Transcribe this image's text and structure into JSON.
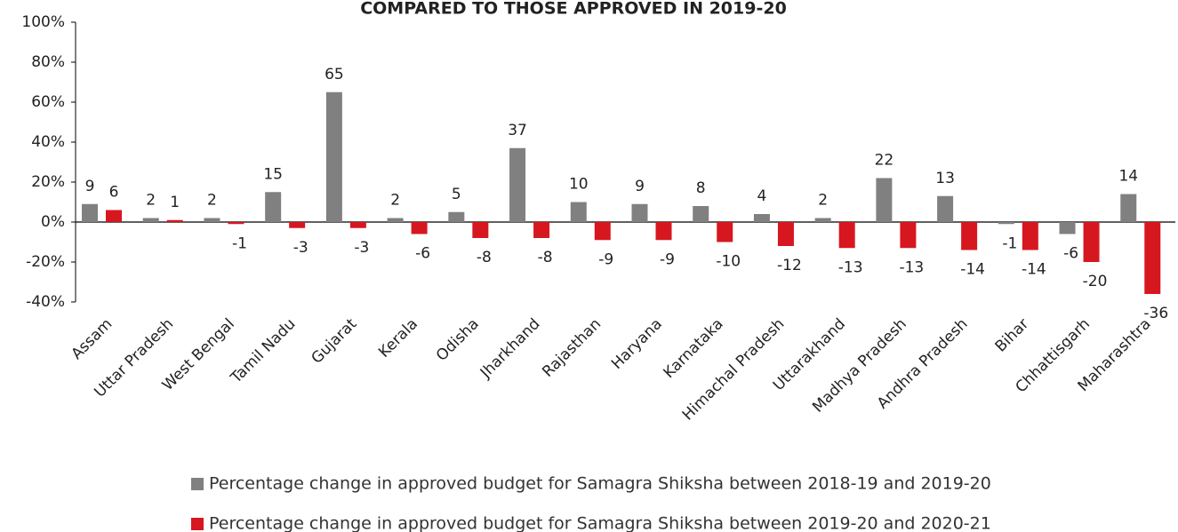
{
  "chart_data": {
    "type": "bar",
    "title": "COMPARED TO THOSE APPROVED IN 2019-20",
    "categories": [
      "Assam",
      "Uttar Pradesh",
      "West Bengal",
      "Tamil Nadu",
      "Gujarat",
      "Kerala",
      "Odisha",
      "Jharkhand",
      "Rajasthan",
      "Haryana",
      "Karnataka",
      "Himachal Pradesh",
      "Uttarakhand",
      "Madhya Pradesh",
      "Andhra Pradesh",
      "Bihar",
      "Chhattisgarh",
      "Maharashtra"
    ],
    "series": [
      {
        "name": "Percentage change in approved budget for Samagra Shiksha between 2018-19 and 2019-20",
        "color": "#808080",
        "values": [
          9,
          2,
          2,
          15,
          65,
          2,
          5,
          37,
          10,
          9,
          8,
          4,
          2,
          22,
          13,
          -1,
          -6,
          14
        ]
      },
      {
        "name": "Percentage change in approved budget for Samagra Shiksha between 2019-20 and 2020-21",
        "color": "#d7171f",
        "values": [
          6,
          1,
          -1,
          -3,
          -3,
          -6,
          -8,
          -8,
          -9,
          -9,
          -10,
          -12,
          -13,
          -13,
          -14,
          -14,
          -20,
          -36
        ]
      }
    ],
    "ylim": [
      -40,
      100
    ],
    "yticks": [
      {
        "value": -40,
        "label": "-40%"
      },
      {
        "value": -20,
        "label": "-20%"
      },
      {
        "value": 0,
        "label": "0%"
      },
      {
        "value": 20,
        "label": "20%"
      },
      {
        "value": 40,
        "label": "40%"
      },
      {
        "value": 60,
        "label": "60%"
      },
      {
        "value": 80,
        "label": "80%"
      },
      {
        "value": 100,
        "label": "100%"
      }
    ]
  }
}
